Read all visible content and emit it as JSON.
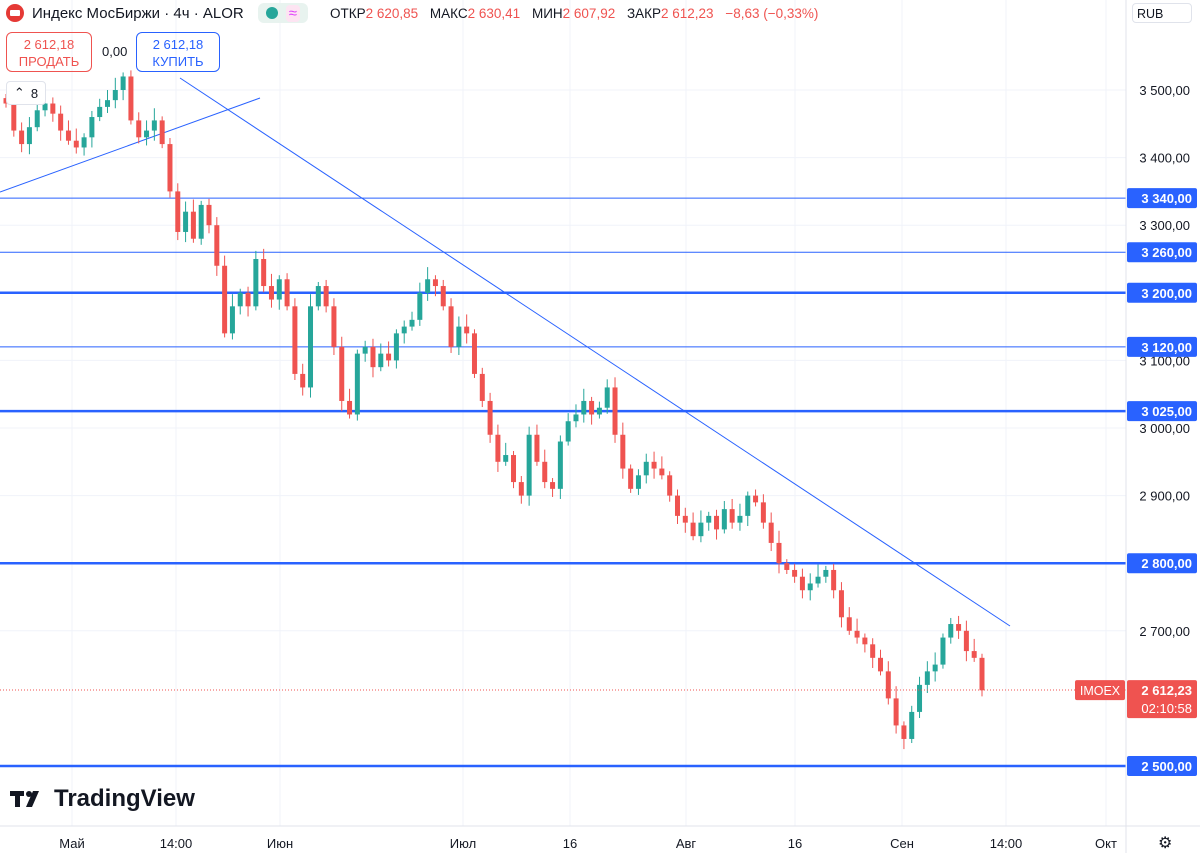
{
  "header": {
    "symbol": "Индекс МосБиржи · 4ч · ALOR",
    "ohlc": [
      {
        "k": "ОТКР",
        "v": "2 620,85"
      },
      {
        "k": "МАКС",
        "v": "2 630,41"
      },
      {
        "k": "МИН",
        "v": "2 607,92"
      },
      {
        "k": "ЗАКР",
        "v": "2 612,23"
      }
    ],
    "change": "−8,63 (−0,33%)",
    "currency": "RUB"
  },
  "trade": {
    "sell_price": "2 612,18",
    "sell_label": "ПРОДАТЬ",
    "spread": "0,00",
    "buy_price": "2 612,18",
    "buy_label": "КУПИТЬ"
  },
  "interval_badge": "8",
  "brand": "TradingView",
  "colors": {
    "up": "#26a69a",
    "down": "#ef5350",
    "lines": "#2962ff",
    "last": "#ef5350"
  },
  "chart_data": {
    "type": "candlestick",
    "ylim": [
      2475,
      3595
    ],
    "price_ticks": [
      "3 500,00",
      "3 400,00",
      "3 300,00",
      "3 100,00",
      "3 000,00",
      "2 900,00",
      "2 700,00"
    ],
    "price_tick_values": [
      3500,
      3400,
      3300,
      3100,
      3000,
      2900,
      2700
    ],
    "x_labels": [
      "Май",
      "14:00",
      "Июн",
      "Июл",
      "16",
      "Авг",
      "16",
      "Сен",
      "14:00",
      "Окт"
    ],
    "horizontal_levels": [
      {
        "value": 3340,
        "label": "3 340,00",
        "weight": "thin"
      },
      {
        "value": 3260,
        "label": "3 260,00",
        "weight": "thin"
      },
      {
        "value": 3200,
        "label": "3 200,00",
        "weight": "thick"
      },
      {
        "value": 3120,
        "label": "3 120,00",
        "weight": "thin"
      },
      {
        "value": 3025,
        "label": "3 025,00",
        "weight": "thick"
      },
      {
        "value": 2800,
        "label": "2 800,00",
        "weight": "thick"
      },
      {
        "value": 2500,
        "label": "2 500,00",
        "weight": "thick"
      }
    ],
    "last_price": {
      "value": 2612.23,
      "label": "2 612,23",
      "symbol": "IMOEX",
      "countdown": "02:10:58"
    },
    "series_closes": [
      3480,
      3440,
      3420,
      3445,
      3470,
      3480,
      3465,
      3440,
      3425,
      3415,
      3430,
      3460,
      3475,
      3485,
      3500,
      3520,
      3455,
      3430,
      3440,
      3455,
      3420,
      3350,
      3290,
      3320,
      3280,
      3330,
      3300,
      3240,
      3140,
      3180,
      3200,
      3180,
      3250,
      3210,
      3190,
      3220,
      3180,
      3080,
      3060,
      3180,
      3210,
      3180,
      3120,
      3040,
      3020,
      3110,
      3120,
      3090,
      3110,
      3100,
      3140,
      3150,
      3160,
      3200,
      3220,
      3210,
      3180,
      3120,
      3150,
      3140,
      3080,
      3040,
      2990,
      2950,
      2960,
      2920,
      2900,
      2990,
      2950,
      2920,
      2910,
      2980,
      3010,
      3020,
      3040,
      3020,
      3030,
      3060,
      2990,
      2940,
      2910,
      2930,
      2950,
      2940,
      2930,
      2900,
      2870,
      2860,
      2840,
      2860,
      2870,
      2850,
      2880,
      2860,
      2870,
      2900,
      2890,
      2860,
      2830,
      2800,
      2790,
      2780,
      2760,
      2770,
      2780,
      2790,
      2760,
      2720,
      2700,
      2690,
      2680,
      2660,
      2640,
      2600,
      2560,
      2540,
      2580,
      2620,
      2640,
      2650,
      2690,
      2710,
      2700,
      2670,
      2660,
      2612
    ]
  }
}
